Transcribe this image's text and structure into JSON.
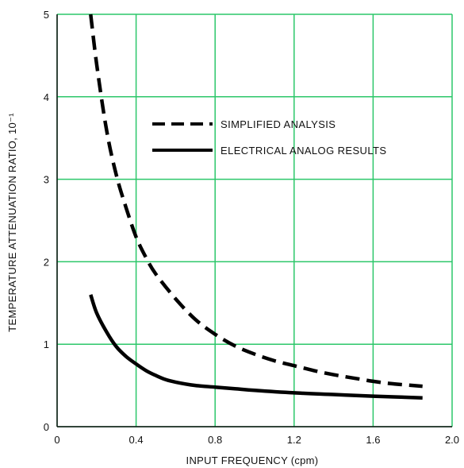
{
  "chart_data": {
    "type": "line",
    "title": "",
    "xlabel": "INPUT FREQUENCY (cpm)",
    "ylabel": "TEMPERATURE ATTENUATION RATIO, 10⁻¹",
    "xlim": [
      0,
      2.0
    ],
    "ylim": [
      0,
      5
    ],
    "grid": true,
    "grid_color": "#2cc76a",
    "x_ticks": [
      0,
      0.4,
      0.8,
      1.2,
      1.6,
      2.0
    ],
    "x_tick_labels": [
      "0",
      "0.4",
      "0.8",
      "1.2",
      "1.6",
      "2.0"
    ],
    "y_ticks": [
      0,
      1,
      2,
      3,
      4,
      5
    ],
    "y_tick_labels": [
      "0",
      "1",
      "2",
      "3",
      "4",
      "5"
    ],
    "legend_position": "upper-center",
    "series": [
      {
        "name": "SIMPLIFIED ANALYSIS",
        "style": "dashed",
        "color": "#000000",
        "x": [
          0.17,
          0.2,
          0.25,
          0.3,
          0.35,
          0.4,
          0.45,
          0.5,
          0.6,
          0.7,
          0.8,
          0.9,
          1.0,
          1.1,
          1.2,
          1.3,
          1.4,
          1.5,
          1.6,
          1.7,
          1.85
        ],
        "y": [
          5.0,
          4.4,
          3.6,
          3.05,
          2.65,
          2.3,
          2.05,
          1.85,
          1.55,
          1.3,
          1.12,
          0.98,
          0.88,
          0.8,
          0.74,
          0.68,
          0.63,
          0.59,
          0.55,
          0.52,
          0.49
        ]
      },
      {
        "name": "ELECTRICAL ANALOG RESULTS",
        "style": "solid",
        "color": "#000000",
        "x": [
          0.17,
          0.2,
          0.25,
          0.3,
          0.35,
          0.4,
          0.45,
          0.5,
          0.55,
          0.6,
          0.7,
          0.8,
          0.9,
          1.0,
          1.2,
          1.4,
          1.6,
          1.85
        ],
        "y": [
          1.6,
          1.38,
          1.15,
          0.97,
          0.85,
          0.76,
          0.68,
          0.62,
          0.57,
          0.54,
          0.5,
          0.48,
          0.46,
          0.44,
          0.41,
          0.39,
          0.37,
          0.35
        ]
      }
    ]
  }
}
